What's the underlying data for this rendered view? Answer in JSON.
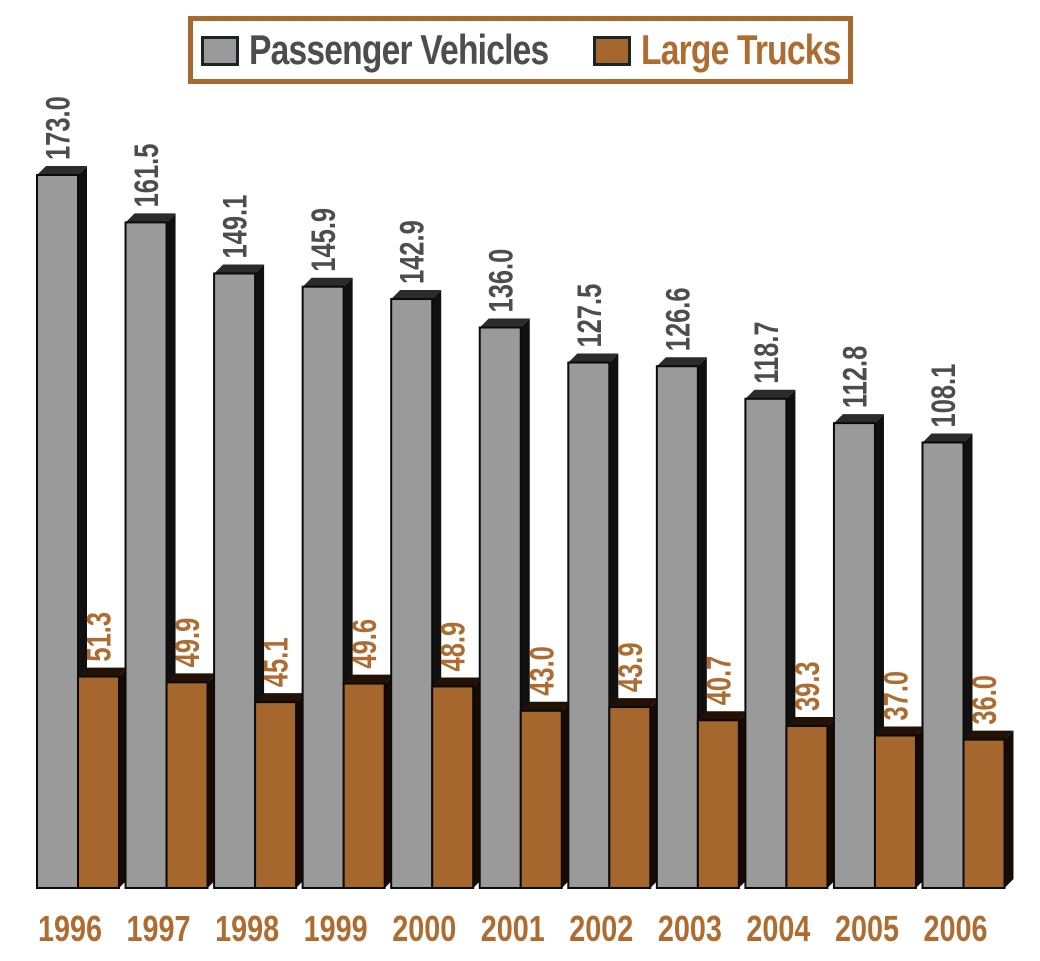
{
  "legend": {
    "items": [
      {
        "label": "Passenger Vehicles",
        "swatch_color": "#9a9a9a",
        "text_color": "#4d4d4d"
      },
      {
        "label": "Large Trucks",
        "swatch_color": "#a5672d",
        "text_color": "#ae6c31"
      }
    ],
    "border_color": "#a6692f",
    "position": "top-center"
  },
  "chart_data": {
    "type": "bar",
    "style": "3d-extruded",
    "categories": [
      "1996",
      "1997",
      "1998",
      "1999",
      "2000",
      "2001",
      "2002",
      "2003",
      "2004",
      "2005",
      "2006"
    ],
    "series": [
      {
        "name": "Passenger Vehicles",
        "values": [
          173.0,
          161.5,
          149.1,
          145.9,
          142.9,
          136.0,
          127.5,
          126.6,
          118.7,
          112.8,
          108.1
        ],
        "color": "#9a9a9a",
        "top_color": "#2b2b2b",
        "side_color": "#101010",
        "label_color": "#4d4d4d"
      },
      {
        "name": "Large Trucks",
        "values": [
          51.3,
          49.9,
          45.1,
          49.6,
          48.9,
          43.0,
          43.9,
          40.7,
          39.3,
          37.0,
          36.0
        ],
        "color": "#a5672d",
        "top_color": "#231106",
        "side_color": "#170a02",
        "label_color": "#ae6c31"
      }
    ],
    "value_label_format": "one-decimal",
    "value_label_orientation": "rotated-90",
    "category_label_color": "#ae6c31",
    "outline_color": "#0a0a0a",
    "title": "",
    "xlabel": "",
    "ylabel": "",
    "ylim": [
      0,
      180
    ],
    "grid": false,
    "axes_hidden": true,
    "legend_position": "top-center"
  }
}
